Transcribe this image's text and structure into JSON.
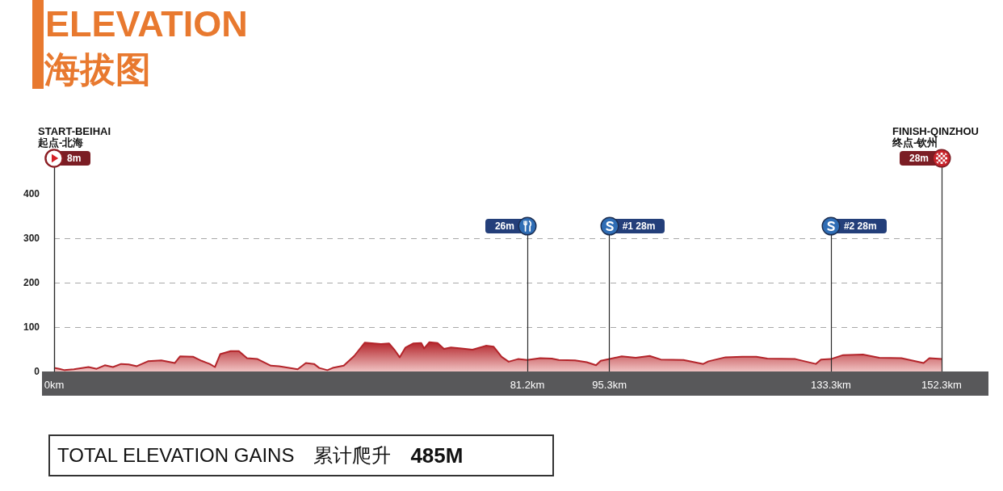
{
  "chart_data": {
    "type": "area",
    "title": "ELEVATION",
    "subtitle": "海拔图",
    "x": [
      0,
      0.9,
      1.8,
      3.4,
      5.9,
      7.3,
      8.7,
      10.1,
      11.5,
      12.8,
      14.2,
      16.1,
      18.4,
      20.7,
      21.6,
      23.9,
      25.3,
      26.7,
      27.6,
      28.5,
      30.3,
      31.7,
      33.1,
      34.9,
      37.2,
      38.6,
      41.8,
      43.2,
      44.6,
      45.5,
      46.9,
      47.8,
      49.7,
      51.5,
      53.3,
      56.1,
      57.5,
      58.4,
      59.3,
      60.3,
      61.6,
      63.0,
      63.5,
      64.4,
      65.8,
      66.9,
      68.1,
      69.9,
      71.8,
      74.1,
      75.4,
      76.8,
      78.0,
      79.6,
      81.2,
      83.4,
      85.4,
      86.6,
      89.4,
      91.4,
      93.0,
      93.8,
      95.3,
      97.4,
      99.8,
      102.2,
      104.1,
      108.0,
      111.4,
      112.3,
      115.2,
      118.1,
      120.5,
      122.4,
      127.2,
      130.7,
      131.6,
      133.3,
      135.4,
      138.8,
      141.6,
      145.4,
      149.2,
      150.2,
      152.3
    ],
    "values": [
      8,
      6,
      3,
      5,
      10,
      6,
      14,
      10,
      17,
      16,
      12,
      23,
      25,
      19,
      34,
      33,
      24,
      17,
      10,
      39,
      46,
      46,
      30,
      28,
      13,
      12,
      5,
      19,
      17,
      8,
      3,
      8,
      13,
      35,
      65,
      62,
      63,
      49,
      32,
      54,
      63,
      64,
      52,
      66,
      64,
      51,
      54,
      52,
      49,
      58,
      56,
      33,
      22,
      28,
      26,
      30,
      29,
      26,
      25,
      21,
      14,
      24,
      28,
      34,
      31,
      35,
      27,
      26,
      17,
      23,
      32,
      33,
      33,
      29,
      28,
      17,
      27,
      28,
      37,
      38,
      31,
      30,
      19,
      30,
      28
    ],
    "color": "#b3242a",
    "xlim": [
      0,
      152.3
    ],
    "xticks": [
      {
        "value": 0,
        "label": "0km"
      },
      {
        "value": 81.2,
        "label": "81.2km"
      },
      {
        "value": 95.3,
        "label": "95.3km"
      },
      {
        "value": 133.3,
        "label": "133.3km"
      },
      {
        "value": 152.3,
        "label": "152.3km"
      }
    ],
    "ylim": [
      0,
      480
    ],
    "yticks": [
      0,
      100,
      200,
      300,
      400
    ],
    "grid": "y",
    "ref_lines": [
      {
        "axis": "x",
        "value": 0,
        "label": "8m"
      },
      {
        "axis": "x",
        "value": 81.2,
        "label": "26m"
      },
      {
        "axis": "x",
        "value": 95.3,
        "label": "#1 28m"
      },
      {
        "axis": "x",
        "value": 133.3,
        "label": "#2 28m"
      },
      {
        "axis": "x",
        "value": 152.3,
        "label": "28m"
      }
    ],
    "annotations": [
      "START-BEIHAI",
      "起点-北海",
      "FINISH-QINZHOU",
      "终点-钦州",
      "TOTAL ELEVATION GAINS",
      "累计爬升",
      "485M"
    ]
  }
}
